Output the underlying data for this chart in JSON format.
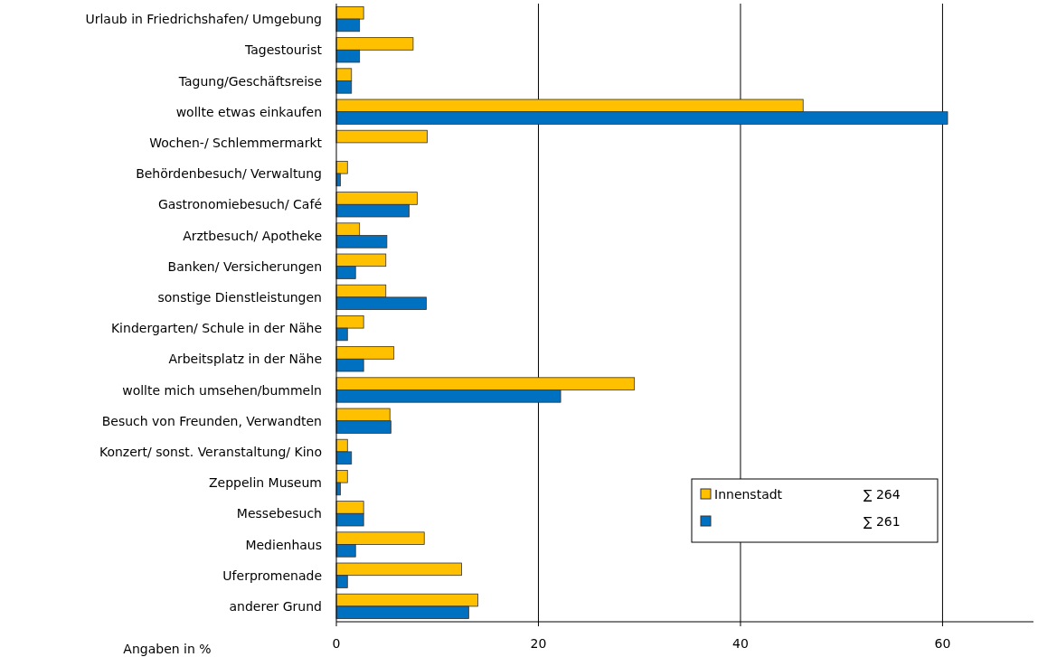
{
  "chart_data": {
    "type": "bar",
    "orientation": "horizontal",
    "xlabel": "Angaben in %",
    "categories": [
      "Urlaub in Friedrichshafen/ Umgebung",
      "Tagestourist",
      "Tagung/Geschäftsreise",
      "wollte etwas einkaufen",
      "Wochen-/ Schlemmermarkt",
      "Behördenbesuch/ Verwaltung",
      "Gastronomiebesuch/ Café",
      "Arztbesuch/ Apotheke",
      "Banken/ Versicherungen",
      "sonstige Dienstleistungen",
      "Kindergarten/ Schule in der Nähe",
      "Arbeitsplatz in der Nähe",
      "wollte mich umsehen/bummeln",
      "Besuch von Freunden, Verwandten",
      "Konzert/ sonst. Veranstaltung/ Kino",
      "Zeppelin Museum",
      "Messebesuch",
      "Medienhaus",
      "Uferpromenade",
      "anderer Grund"
    ],
    "series": [
      {
        "name": "Innenstadt",
        "color": "#ffc000",
        "values": [
          2.7,
          7.6,
          1.5,
          46.2,
          9.0,
          1.1,
          8.0,
          2.3,
          4.9,
          4.9,
          2.7,
          5.7,
          29.5,
          5.3,
          1.1,
          1.1,
          2.7,
          8.7,
          12.4,
          14.0
        ]
      },
      {
        "color": "#0070c0",
        "values": [
          2.3,
          2.3,
          1.5,
          60.5,
          0,
          0.4,
          7.2,
          5.0,
          1.9,
          8.9,
          1.1,
          2.7,
          22.2,
          5.4,
          1.5,
          0.4,
          2.7,
          1.9,
          1.1,
          13.1
        ]
      }
    ],
    "annotations": [
      "∑ 264",
      "∑ 261"
    ],
    "xlim": [
      0,
      69
    ],
    "xticks": [
      0,
      20,
      40,
      60
    ],
    "grid": "x",
    "legend": "bottom right"
  }
}
